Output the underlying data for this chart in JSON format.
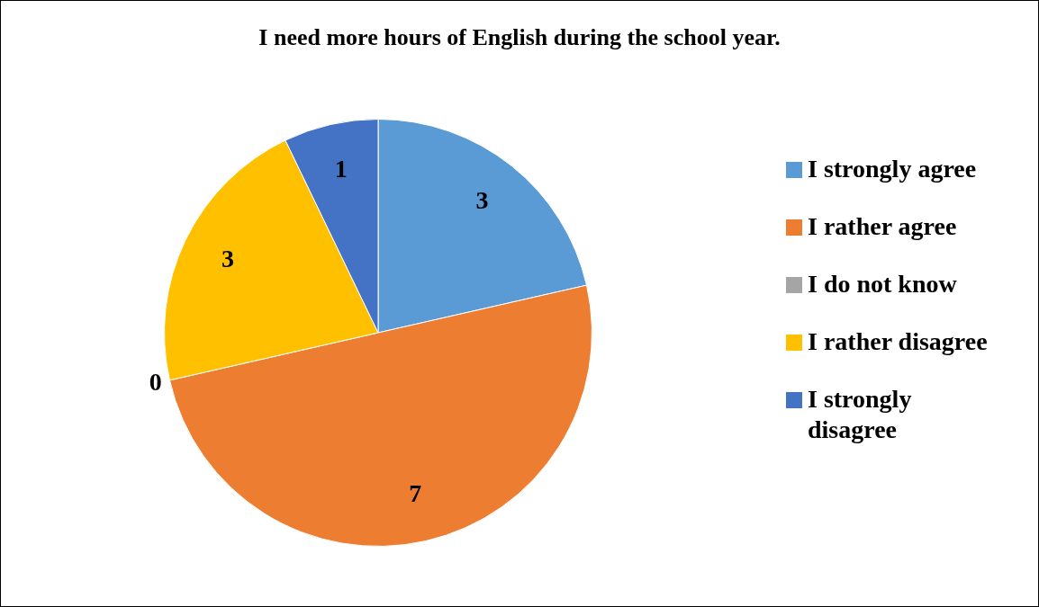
{
  "chart_data": {
    "type": "pie",
    "title": "I need more hours of English during the school year.",
    "categories": [
      "I strongly agree",
      "I rather agree",
      "I do not know",
      "I rather disagree",
      "I strongly disagree"
    ],
    "values": [
      3,
      7,
      0,
      3,
      1
    ],
    "colors": [
      "#5b9bd5",
      "#ed7d31",
      "#a5a5a5",
      "#ffc000",
      "#4472c4"
    ],
    "value_labels": [
      "3",
      "7",
      "0",
      "3",
      "1"
    ],
    "legend": "right"
  }
}
